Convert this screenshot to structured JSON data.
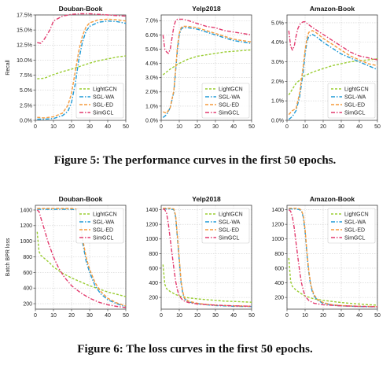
{
  "figures": [
    {
      "caption": "Figure 5: The performance curves in the first 50 epochs."
    },
    {
      "caption": "Figure 6: The loss curves in the first 50 epochs."
    }
  ],
  "series_colors": {
    "LightGCN": "#9acd32",
    "SGL-WA": "#1f9ad6",
    "SGL-ED": "#f59a3c",
    "SimGCL": "#e23a6e"
  },
  "chart_data": [
    {
      "type": "line",
      "title": "Douban-Book",
      "ylabel": "Recall",
      "xlim": [
        0,
        50
      ],
      "ylim": [
        0,
        17.5
      ],
      "y_format": "percent2",
      "grid": true,
      "legend_position": "lower-right",
      "x_ticks": [
        0,
        10,
        20,
        30,
        40,
        50
      ],
      "y_ticks": [
        0,
        2.5,
        5,
        7.5,
        10,
        12.5,
        15,
        17.5
      ],
      "y_tick_labels": [
        "0.0%",
        "2.5%",
        "5.0%",
        "7.5%",
        "10.0%",
        "12.5%",
        "15.0%",
        "17.5%"
      ],
      "series": [
        {
          "name": "LightGCN",
          "x": [
            1,
            5,
            10,
            15,
            20,
            25,
            30,
            35,
            40,
            45,
            50
          ],
          "y": [
            6.9,
            7.0,
            7.6,
            8.1,
            8.5,
            9.0,
            9.5,
            9.9,
            10.2,
            10.5,
            10.7
          ]
        },
        {
          "name": "SGL-WA",
          "x": [
            1,
            5,
            10,
            15,
            18,
            20,
            22,
            24,
            26,
            28,
            30,
            35,
            40,
            45,
            50
          ],
          "y": [
            0.2,
            0.2,
            0.3,
            0.8,
            1.5,
            3.0,
            6.0,
            10.0,
            13.0,
            14.8,
            15.6,
            16.3,
            16.5,
            16.4,
            16.1
          ]
        },
        {
          "name": "SGL-ED",
          "x": [
            1,
            5,
            10,
            15,
            18,
            20,
            22,
            24,
            26,
            28,
            30,
            35,
            40,
            45,
            50
          ],
          "y": [
            0.5,
            0.4,
            0.6,
            1.2,
            2.5,
            4.5,
            8.0,
            11.5,
            14.0,
            15.5,
            16.2,
            16.7,
            16.8,
            16.7,
            16.5
          ]
        },
        {
          "name": "SimGCL",
          "x": [
            1,
            3,
            5,
            8,
            10,
            15,
            20,
            25,
            30,
            35,
            40,
            45,
            50
          ],
          "y": [
            12.9,
            12.8,
            13.5,
            15.0,
            16.5,
            17.3,
            17.6,
            17.7,
            17.7,
            17.6,
            17.5,
            17.4,
            17.3
          ]
        }
      ]
    },
    {
      "type": "line",
      "title": "Yelp2018",
      "ylabel": "",
      "xlim": [
        0,
        50
      ],
      "ylim": [
        0,
        7.4
      ],
      "y_format": "percent1",
      "grid": true,
      "legend_position": "lower-right",
      "x_ticks": [
        0,
        10,
        20,
        30,
        40,
        50
      ],
      "y_ticks": [
        0,
        1,
        2,
        3,
        4,
        5,
        6,
        7
      ],
      "y_tick_labels": [
        "0.0%",
        "1.0%",
        "2.0%",
        "3.0%",
        "4.0%",
        "5.0%",
        "6.0%",
        "7.0%"
      ],
      "series": [
        {
          "name": "LightGCN",
          "x": [
            1,
            5,
            10,
            15,
            20,
            25,
            30,
            35,
            40,
            45,
            50
          ],
          "y": [
            3.2,
            3.6,
            4.0,
            4.3,
            4.5,
            4.6,
            4.7,
            4.8,
            4.85,
            4.9,
            4.95
          ]
        },
        {
          "name": "SGL-WA",
          "x": [
            1,
            3,
            5,
            7,
            8,
            9,
            10,
            11,
            12,
            13,
            15,
            20,
            25,
            30,
            35,
            40,
            45,
            50
          ],
          "y": [
            0.2,
            0.4,
            0.9,
            2.0,
            3.5,
            5.0,
            6.0,
            6.4,
            6.5,
            6.5,
            6.5,
            6.4,
            6.2,
            6.0,
            5.8,
            5.6,
            5.5,
            5.4
          ]
        },
        {
          "name": "SGL-ED",
          "x": [
            1,
            3,
            5,
            7,
            8,
            9,
            10,
            11,
            12,
            13,
            15,
            20,
            25,
            30,
            35,
            40,
            45,
            50
          ],
          "y": [
            0.6,
            0.5,
            0.9,
            2.1,
            3.6,
            5.2,
            6.1,
            6.5,
            6.6,
            6.6,
            6.6,
            6.5,
            6.3,
            6.1,
            5.9,
            5.7,
            5.6,
            5.5
          ]
        },
        {
          "name": "SimGCL",
          "x": [
            1,
            2,
            3,
            4,
            5,
            6,
            7,
            8,
            9,
            10,
            12,
            15,
            20,
            25,
            30,
            35,
            40,
            45,
            50
          ],
          "y": [
            6.0,
            5.0,
            4.8,
            4.7,
            5.0,
            5.8,
            6.6,
            7.0,
            7.1,
            7.1,
            7.1,
            7.0,
            6.8,
            6.6,
            6.5,
            6.3,
            6.2,
            6.1,
            6.0
          ]
        }
      ]
    },
    {
      "type": "line",
      "title": "Amazon-Book",
      "ylabel": "",
      "xlim": [
        0,
        50
      ],
      "ylim": [
        0,
        5.4
      ],
      "y_format": "percent1",
      "grid": true,
      "legend_position": "lower-right",
      "x_ticks": [
        0,
        10,
        20,
        30,
        40,
        50
      ],
      "y_ticks": [
        0,
        1,
        2,
        3,
        4,
        5
      ],
      "y_tick_labels": [
        "0.0%",
        "1.0%",
        "2.0%",
        "3.0%",
        "4.0%",
        "5.0%"
      ],
      "series": [
        {
          "name": "LightGCN",
          "x": [
            1,
            3,
            5,
            10,
            15,
            20,
            25,
            30,
            35,
            40,
            45,
            50
          ],
          "y": [
            1.3,
            1.6,
            1.9,
            2.3,
            2.5,
            2.65,
            2.8,
            2.9,
            3.0,
            3.05,
            3.1,
            3.15
          ]
        },
        {
          "name": "SGL-WA",
          "x": [
            1,
            3,
            5,
            7,
            9,
            10,
            11,
            12,
            14,
            16,
            20,
            25,
            30,
            35,
            40,
            45,
            50
          ],
          "y": [
            0.05,
            0.2,
            0.5,
            1.2,
            2.5,
            3.4,
            4.0,
            4.3,
            4.4,
            4.3,
            4.0,
            3.7,
            3.4,
            3.2,
            3.0,
            2.8,
            2.6
          ]
        },
        {
          "name": "SGL-ED",
          "x": [
            1,
            3,
            5,
            7,
            9,
            10,
            11,
            12,
            14,
            16,
            20,
            25,
            30,
            35,
            40,
            45,
            50
          ],
          "y": [
            0.3,
            0.5,
            0.6,
            1.4,
            2.8,
            3.6,
            4.2,
            4.5,
            4.6,
            4.5,
            4.2,
            3.9,
            3.6,
            3.3,
            3.1,
            2.9,
            2.8
          ]
        },
        {
          "name": "SimGCL",
          "x": [
            1,
            2,
            3,
            4,
            5,
            6,
            7,
            8,
            9,
            10,
            12,
            15,
            20,
            25,
            30,
            35,
            40,
            45,
            50
          ],
          "y": [
            4.6,
            3.8,
            3.6,
            3.8,
            4.3,
            4.7,
            4.9,
            5.0,
            5.05,
            5.05,
            4.9,
            4.7,
            4.4,
            4.1,
            3.8,
            3.5,
            3.3,
            3.2,
            3.1
          ]
        }
      ]
    },
    {
      "type": "line",
      "title": "Douban-Book",
      "ylabel": "Batch BPR loss",
      "xlim": [
        0,
        50
      ],
      "ylim": [
        130,
        1460
      ],
      "y_format": "int",
      "grid": true,
      "legend_position": "top-right",
      "x_ticks": [
        0,
        10,
        20,
        30,
        40,
        50
      ],
      "y_ticks": [
        200,
        400,
        600,
        800,
        1000,
        1200,
        1400
      ],
      "y_tick_labels": [
        "200",
        "400",
        "600",
        "800",
        "1000",
        "1200",
        "1400"
      ],
      "series": [
        {
          "name": "LightGCN",
          "x": [
            1,
            2,
            3,
            5,
            8,
            10,
            15,
            20,
            25,
            30,
            35,
            40,
            45,
            50
          ],
          "y": [
            1120,
            870,
            820,
            780,
            720,
            670,
            590,
            530,
            480,
            430,
            390,
            350,
            320,
            290
          ]
        },
        {
          "name": "SGL-WA",
          "x": [
            1,
            5,
            10,
            15,
            20,
            24,
            25,
            26,
            28,
            30,
            33,
            36,
            40,
            45,
            50
          ],
          "y": [
            1410,
            1410,
            1410,
            1410,
            1410,
            1400,
            1250,
            1000,
            750,
            600,
            430,
            330,
            250,
            200,
            160
          ]
        },
        {
          "name": "SGL-ED",
          "x": [
            1,
            5,
            10,
            15,
            20,
            24,
            25,
            26,
            28,
            30,
            33,
            36,
            40,
            45,
            50
          ],
          "y": [
            1420,
            1420,
            1420,
            1420,
            1420,
            1410,
            1280,
            1050,
            800,
            640,
            470,
            360,
            270,
            210,
            170
          ]
        },
        {
          "name": "SimGCL",
          "x": [
            1,
            2,
            3,
            5,
            7,
            10,
            13,
            16,
            20,
            25,
            30,
            35,
            40,
            45,
            50
          ],
          "y": [
            1400,
            1380,
            1300,
            1150,
            990,
            800,
            650,
            540,
            430,
            340,
            270,
            220,
            185,
            165,
            150
          ]
        }
      ]
    },
    {
      "type": "line",
      "title": "Yelp2018",
      "ylabel": "",
      "xlim": [
        0,
        50
      ],
      "ylim": [
        40,
        1460
      ],
      "y_format": "int",
      "grid": true,
      "legend_position": "top-right",
      "x_ticks": [
        0,
        10,
        20,
        30,
        40,
        50
      ],
      "y_ticks": [
        200,
        400,
        600,
        800,
        1000,
        1200,
        1400
      ],
      "y_tick_labels": [
        "200",
        "400",
        "600",
        "800",
        "1000",
        "1200",
        "1400"
      ],
      "series": [
        {
          "name": "LightGCN",
          "x": [
            1,
            2,
            3,
            5,
            8,
            10,
            15,
            20,
            25,
            30,
            35,
            40,
            45,
            50
          ],
          "y": [
            650,
            380,
            320,
            280,
            240,
            220,
            195,
            180,
            170,
            160,
            150,
            145,
            140,
            135
          ]
        },
        {
          "name": "SGL-WA",
          "x": [
            1,
            3,
            5,
            7,
            8,
            9,
            10,
            11,
            12,
            13,
            15,
            20,
            25,
            30,
            40,
            50
          ],
          "y": [
            1410,
            1410,
            1410,
            1400,
            1300,
            1000,
            700,
            400,
            250,
            180,
            140,
            115,
            100,
            90,
            80,
            75
          ]
        },
        {
          "name": "SGL-ED",
          "x": [
            1,
            3,
            5,
            7,
            8,
            9,
            10,
            11,
            12,
            13,
            15,
            20,
            25,
            30,
            40,
            50
          ],
          "y": [
            1420,
            1420,
            1420,
            1410,
            1320,
            1030,
            730,
            420,
            270,
            190,
            150,
            120,
            105,
            95,
            85,
            80
          ]
        },
        {
          "name": "SimGCL",
          "x": [
            1,
            2,
            3,
            4,
            5,
            6,
            7,
            8,
            9,
            10,
            12,
            15,
            20,
            30,
            40,
            50
          ],
          "y": [
            1410,
            1400,
            1350,
            1200,
            1000,
            800,
            600,
            420,
            300,
            220,
            160,
            130,
            110,
            95,
            85,
            80
          ]
        }
      ]
    },
    {
      "type": "line",
      "title": "Amazon-Book",
      "ylabel": "",
      "xlim": [
        0,
        50
      ],
      "ylim": [
        40,
        1460
      ],
      "y_format": "int",
      "grid": true,
      "legend_position": "top-right",
      "x_ticks": [
        0,
        10,
        20,
        30,
        40,
        50
      ],
      "y_ticks": [
        200,
        400,
        600,
        800,
        1000,
        1200,
        1400
      ],
      "y_tick_labels": [
        "200",
        "400",
        "600",
        "800",
        "1000",
        "1200",
        "1400"
      ],
      "series": [
        {
          "name": "LightGCN",
          "x": [
            1,
            2,
            3,
            5,
            8,
            10,
            15,
            20,
            25,
            30,
            35,
            40,
            45,
            50
          ],
          "y": [
            740,
            420,
            350,
            300,
            250,
            220,
            180,
            160,
            145,
            130,
            120,
            110,
            100,
            95
          ]
        },
        {
          "name": "SGL-WA",
          "x": [
            1,
            3,
            5,
            7,
            8,
            9,
            10,
            11,
            12,
            13,
            14,
            15,
            17,
            20,
            25,
            30,
            40,
            50
          ],
          "y": [
            1410,
            1410,
            1410,
            1400,
            1380,
            1300,
            1100,
            800,
            550,
            380,
            280,
            220,
            160,
            120,
            95,
            85,
            75,
            70
          ]
        },
        {
          "name": "SGL-ED",
          "x": [
            1,
            3,
            5,
            7,
            8,
            9,
            10,
            11,
            12,
            13,
            14,
            15,
            17,
            20,
            25,
            30,
            40,
            50
          ],
          "y": [
            1420,
            1420,
            1420,
            1410,
            1390,
            1320,
            1130,
            830,
            580,
            400,
            300,
            235,
            170,
            130,
            100,
            90,
            80,
            75
          ]
        },
        {
          "name": "SimGCL",
          "x": [
            1,
            2,
            3,
            4,
            5,
            6,
            7,
            8,
            9,
            10,
            12,
            15,
            20,
            30,
            40,
            50
          ],
          "y": [
            1400,
            1380,
            1300,
            1150,
            950,
            750,
            560,
            400,
            300,
            220,
            160,
            120,
            100,
            85,
            78,
            72
          ]
        }
      ]
    }
  ]
}
